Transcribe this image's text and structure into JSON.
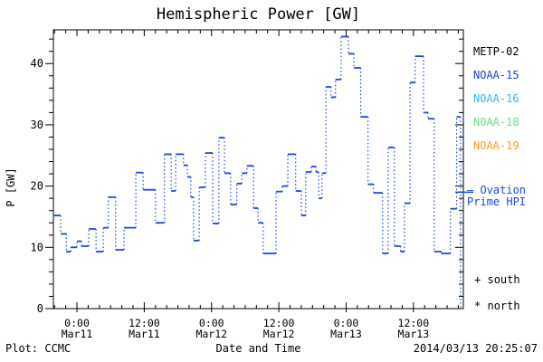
{
  "title": "Hemispheric Power [GW]",
  "axes": {
    "ylabel": "P [GW]",
    "xlabel": "Date and Time"
  },
  "footer": {
    "plot_credit": "Plot: CCMC",
    "timestamp": "2014/03/13 20:25:07"
  },
  "legend": {
    "satellites": [
      {
        "label": "METP-02",
        "color": "#000000"
      },
      {
        "label": "NOAA-15",
        "color": "#2243d0"
      },
      {
        "label": "NOAA-16",
        "color": "#3ab4f2"
      },
      {
        "label": "NOAA-18",
        "color": "#63e389"
      },
      {
        "label": "NOAA-19",
        "color": "#ff9c26"
      }
    ],
    "ovation": {
      "line1": "– Ovation",
      "line2": "Prime HPI",
      "color": "#1c49e0"
    },
    "markers": [
      {
        "symbol": "+",
        "label": "south"
      },
      {
        "symbol": "*",
        "label": "north"
      }
    ]
  },
  "chart_data": {
    "type": "line",
    "subtype": "step",
    "title": "Hemispheric Power [GW]",
    "xlabel": "Date and Time",
    "ylabel": "P [GW]",
    "line_color": "#1c49e0",
    "grid": false,
    "x_unit": "hours since 2014-03-11 00:00 UT",
    "xlim": [
      -4.2,
      68.9
    ],
    "ylim": [
      0,
      45.5
    ],
    "x_minor_step": 2,
    "y_minor_step": 2,
    "x_ticks": [
      {
        "t": 0,
        "time": "0:00",
        "date": "Mar11"
      },
      {
        "t": 12,
        "time": "12:00",
        "date": "Mar11"
      },
      {
        "t": 24,
        "time": "0:00",
        "date": "Mar12"
      },
      {
        "t": 36,
        "time": "12:00",
        "date": "Mar12"
      },
      {
        "t": 48,
        "time": "0:00",
        "date": "Mar13"
      },
      {
        "t": 60,
        "time": "12:00",
        "date": "Mar13"
      }
    ],
    "y_ticks": [
      {
        "v": 0,
        "label": "0"
      },
      {
        "v": 10,
        "label": "10"
      },
      {
        "v": 20,
        "label": "20"
      },
      {
        "v": 30,
        "label": "30"
      },
      {
        "v": 40,
        "label": "40"
      }
    ],
    "legend_entries": [
      "METP-02",
      "NOAA-15",
      "NOAA-16",
      "NOAA-18",
      "NOAA-19",
      "Ovation Prime HPI",
      "+ south",
      "* north"
    ],
    "series": [
      {
        "name": "Ovation Prime HPI",
        "points": [
          [
            -4.2,
            15.2
          ],
          [
            -2.9,
            12.2
          ],
          [
            -1.9,
            9.3
          ],
          [
            -1.1,
            10.0
          ],
          [
            0.0,
            11.0
          ],
          [
            0.8,
            10.2
          ],
          [
            2.1,
            13.0
          ],
          [
            3.4,
            9.3
          ],
          [
            4.7,
            13.2
          ],
          [
            5.6,
            18.2
          ],
          [
            6.9,
            9.6
          ],
          [
            8.4,
            13.2
          ],
          [
            10.5,
            22.2
          ],
          [
            11.8,
            19.4
          ],
          [
            14.0,
            14.0
          ],
          [
            15.6,
            25.2
          ],
          [
            16.8,
            19.2
          ],
          [
            17.6,
            25.2
          ],
          [
            19.0,
            23.4
          ],
          [
            19.7,
            21.5
          ],
          [
            20.3,
            18.2
          ],
          [
            20.8,
            11.1
          ],
          [
            21.8,
            19.8
          ],
          [
            22.9,
            25.4
          ],
          [
            24.2,
            13.9
          ],
          [
            25.3,
            27.9
          ],
          [
            26.3,
            22.1
          ],
          [
            27.4,
            17.0
          ],
          [
            28.5,
            20.4
          ],
          [
            29.4,
            22.1
          ],
          [
            30.3,
            23.3
          ],
          [
            31.5,
            16.4
          ],
          [
            32.3,
            14.0
          ],
          [
            33.2,
            9.0
          ],
          [
            35.5,
            19.1
          ],
          [
            36.6,
            20.0
          ],
          [
            37.6,
            25.2
          ],
          [
            39.0,
            19.2
          ],
          [
            40.0,
            15.2
          ],
          [
            40.8,
            22.3
          ],
          [
            41.8,
            23.2
          ],
          [
            42.6,
            22.3
          ],
          [
            43.1,
            18.0
          ],
          [
            43.7,
            22.1
          ],
          [
            44.4,
            36.2
          ],
          [
            45.3,
            34.5
          ],
          [
            46.1,
            37.4
          ],
          [
            47.1,
            44.4
          ],
          [
            48.4,
            41.6
          ],
          [
            49.4,
            39.3
          ],
          [
            50.6,
            31.3
          ],
          [
            51.9,
            20.3
          ],
          [
            52.9,
            18.9
          ],
          [
            54.5,
            9.0
          ],
          [
            55.5,
            26.3
          ],
          [
            56.6,
            10.2
          ],
          [
            57.7,
            9.3
          ],
          [
            58.4,
            17.2
          ],
          [
            59.4,
            36.9
          ],
          [
            60.3,
            41.2
          ],
          [
            61.8,
            32.0
          ],
          [
            62.6,
            31.0
          ],
          [
            63.7,
            9.3
          ],
          [
            65.0,
            9.0
          ],
          [
            66.6,
            16.3
          ],
          [
            67.7,
            31.3
          ],
          [
            68.4,
            0.0
          ]
        ]
      }
    ]
  }
}
